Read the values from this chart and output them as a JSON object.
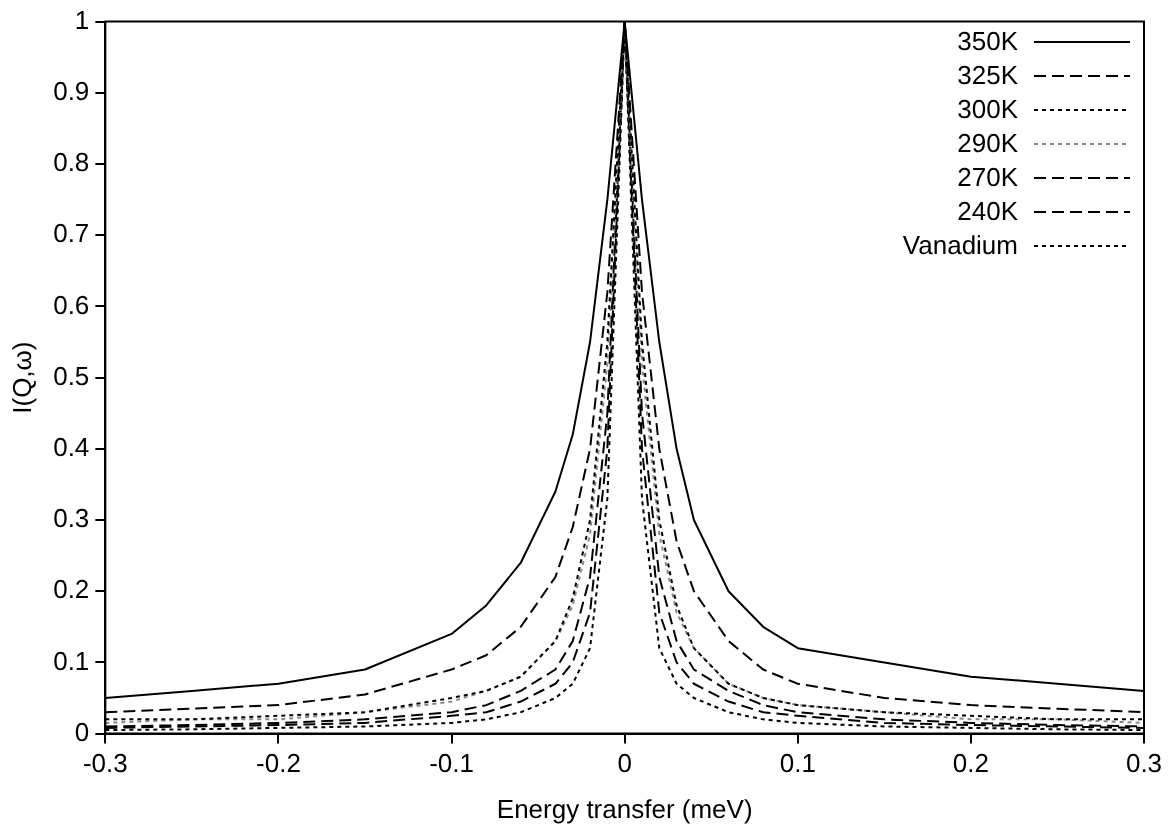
{
  "chart_data": {
    "type": "line",
    "xlabel": "Energy transfer (meV)",
    "ylabel": "I(Q,ω)",
    "x": [
      -0.3,
      -0.25,
      -0.2,
      -0.15,
      -0.1,
      -0.08,
      -0.06,
      -0.04,
      -0.03,
      -0.02,
      -0.01,
      0,
      0.01,
      0.02,
      0.03,
      0.04,
      0.06,
      0.08,
      0.1,
      0.15,
      0.2,
      0.25,
      0.3
    ],
    "series": [
      {
        "name": "350K",
        "color": "#000000",
        "line_style": "solid",
        "values": [
          0.05,
          0.06,
          0.07,
          0.09,
          0.14,
          0.18,
          0.24,
          0.34,
          0.42,
          0.55,
          0.75,
          1,
          0.75,
          0.55,
          0.4,
          0.3,
          0.2,
          0.15,
          0.12,
          0.1,
          0.08,
          0.07,
          0.06
        ]
      },
      {
        "name": "325K",
        "color": "#000000",
        "line_style": "dashed",
        "values": [
          0.03,
          0.035,
          0.04,
          0.055,
          0.09,
          0.11,
          0.15,
          0.22,
          0.29,
          0.4,
          0.62,
          1,
          0.62,
          0.4,
          0.27,
          0.2,
          0.13,
          0.09,
          0.07,
          0.05,
          0.04,
          0.035,
          0.03
        ]
      },
      {
        "name": "300K",
        "color": "#000000",
        "line_style": "dotted",
        "values": [
          0.02,
          0.02,
          0.025,
          0.03,
          0.05,
          0.06,
          0.08,
          0.13,
          0.19,
          0.3,
          0.55,
          1,
          0.55,
          0.3,
          0.18,
          0.12,
          0.07,
          0.05,
          0.04,
          0.03,
          0.025,
          0.02,
          0.02
        ]
      },
      {
        "name": "290K",
        "color": "#888888",
        "line_style": "dotted",
        "values": [
          0.015,
          0.02,
          0.02,
          0.03,
          0.045,
          0.06,
          0.08,
          0.13,
          0.18,
          0.28,
          0.52,
          1,
          0.52,
          0.28,
          0.17,
          0.12,
          0.07,
          0.05,
          0.04,
          0.03,
          0.02,
          0.02,
          0.015
        ]
      },
      {
        "name": "270K",
        "color": "#000000",
        "line_style": "dashed",
        "values": [
          0.01,
          0.012,
          0.015,
          0.02,
          0.03,
          0.04,
          0.06,
          0.09,
          0.13,
          0.22,
          0.45,
          1,
          0.45,
          0.22,
          0.13,
          0.09,
          0.06,
          0.04,
          0.03,
          0.02,
          0.015,
          0.012,
          0.01
        ]
      },
      {
        "name": "240K",
        "color": "#000000",
        "line_style": "dashed",
        "values": [
          0.008,
          0.01,
          0.012,
          0.015,
          0.025,
          0.03,
          0.045,
          0.07,
          0.1,
          0.17,
          0.4,
          1,
          0.4,
          0.17,
          0.1,
          0.07,
          0.045,
          0.03,
          0.025,
          0.015,
          0.012,
          0.01,
          0.008
        ]
      },
      {
        "name": "Vanadium",
        "color": "#000000",
        "line_style": "dotted",
        "values": [
          0.005,
          0.006,
          0.008,
          0.01,
          0.015,
          0.02,
          0.03,
          0.05,
          0.07,
          0.12,
          0.33,
          1,
          0.33,
          0.12,
          0.07,
          0.05,
          0.03,
          0.02,
          0.015,
          0.01,
          0.008,
          0.006,
          0.005
        ]
      }
    ],
    "xlim": [
      -0.3,
      0.3
    ],
    "xticks": [
      -0.3,
      -0.2,
      -0.1,
      0,
      0.1,
      0.2,
      0.3
    ],
    "ylim": [
      0,
      1
    ],
    "yticks": [
      0,
      0.1,
      0.2,
      0.3,
      0.4,
      0.5,
      0.6,
      0.7,
      0.8,
      0.9,
      1
    ],
    "grid": false,
    "legend": "top right",
    "marker": "none"
  }
}
